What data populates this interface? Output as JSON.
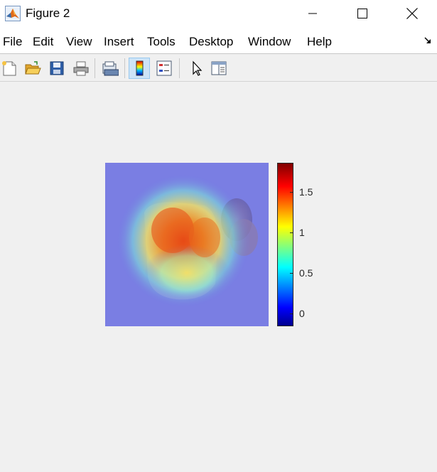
{
  "window": {
    "title": "Figure 2",
    "icon": "matlab-logo-icon"
  },
  "menubar": {
    "items": [
      "File",
      "Edit",
      "View",
      "Insert",
      "Tools",
      "Desktop",
      "Window",
      "Help"
    ]
  },
  "toolbar": {
    "buttons": [
      {
        "name": "new-figure-icon",
        "active": false
      },
      {
        "name": "open-file-icon",
        "active": false
      },
      {
        "name": "save-icon",
        "active": false
      },
      {
        "name": "print-icon",
        "active": false
      },
      {
        "name": "link-plot-icon",
        "active": false
      },
      {
        "name": "insert-colorbar-icon",
        "active": true
      },
      {
        "name": "insert-legend-icon",
        "active": false
      },
      {
        "name": "edit-plot-pointer-icon",
        "active": false
      },
      {
        "name": "property-inspector-icon",
        "active": false
      }
    ]
  },
  "figure": {
    "image": "heatmap overlay on photo of a glass jar with oranges and a kiwi",
    "colorbar": {
      "colormap": "jet",
      "ticks": [
        "0",
        "0.5",
        "1",
        "1.5"
      ],
      "tick_values": [
        0,
        0.5,
        1,
        1.5
      ],
      "range": [
        -0.15,
        1.85
      ]
    }
  },
  "colors": {
    "titlebar_bg": "#ffffff",
    "window_bg": "#f0f0f0",
    "active_button_bg": "#cde4f7"
  }
}
